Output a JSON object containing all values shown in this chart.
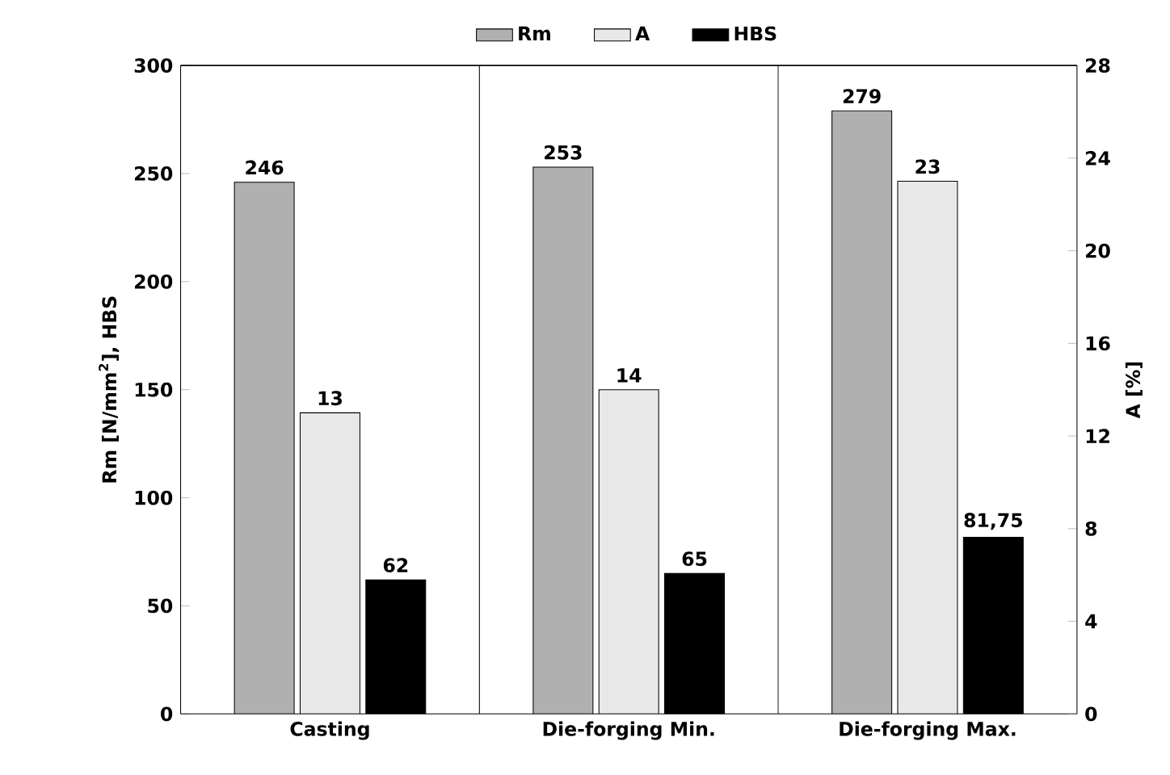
{
  "chart_data": {
    "type": "bar",
    "categories": [
      "Casting",
      "Die-forging Min.",
      "Die-forging Max."
    ],
    "ylabel": "Rm [N/mm$^{2}$], HBS",
    "y2label": "A [%]",
    "ylim": [
      0,
      300
    ],
    "yticks": [
      0,
      50,
      100,
      150,
      200,
      250,
      300
    ],
    "y2lim": [
      0,
      28
    ],
    "y2ticks": [
      0,
      4,
      8,
      12,
      16,
      20,
      24,
      28
    ],
    "grid": "x",
    "legend": "top",
    "series": [
      {
        "name": "Rm",
        "color": "#b0b0b0",
        "values": [
          246,
          253,
          279
        ],
        "value_labels": [
          "246",
          "253",
          "279"
        ]
      },
      {
        "name": "A",
        "color": "#e8e8e8",
        "axis": "y2",
        "values": [
          13,
          14,
          23
        ],
        "value_labels": [
          "13",
          "14",
          "23"
        ]
      },
      {
        "name": "HBS",
        "color": "#000000",
        "values": [
          62,
          65,
          81.75
        ],
        "value_labels": [
          "62",
          "65",
          "81,75"
        ]
      }
    ]
  }
}
